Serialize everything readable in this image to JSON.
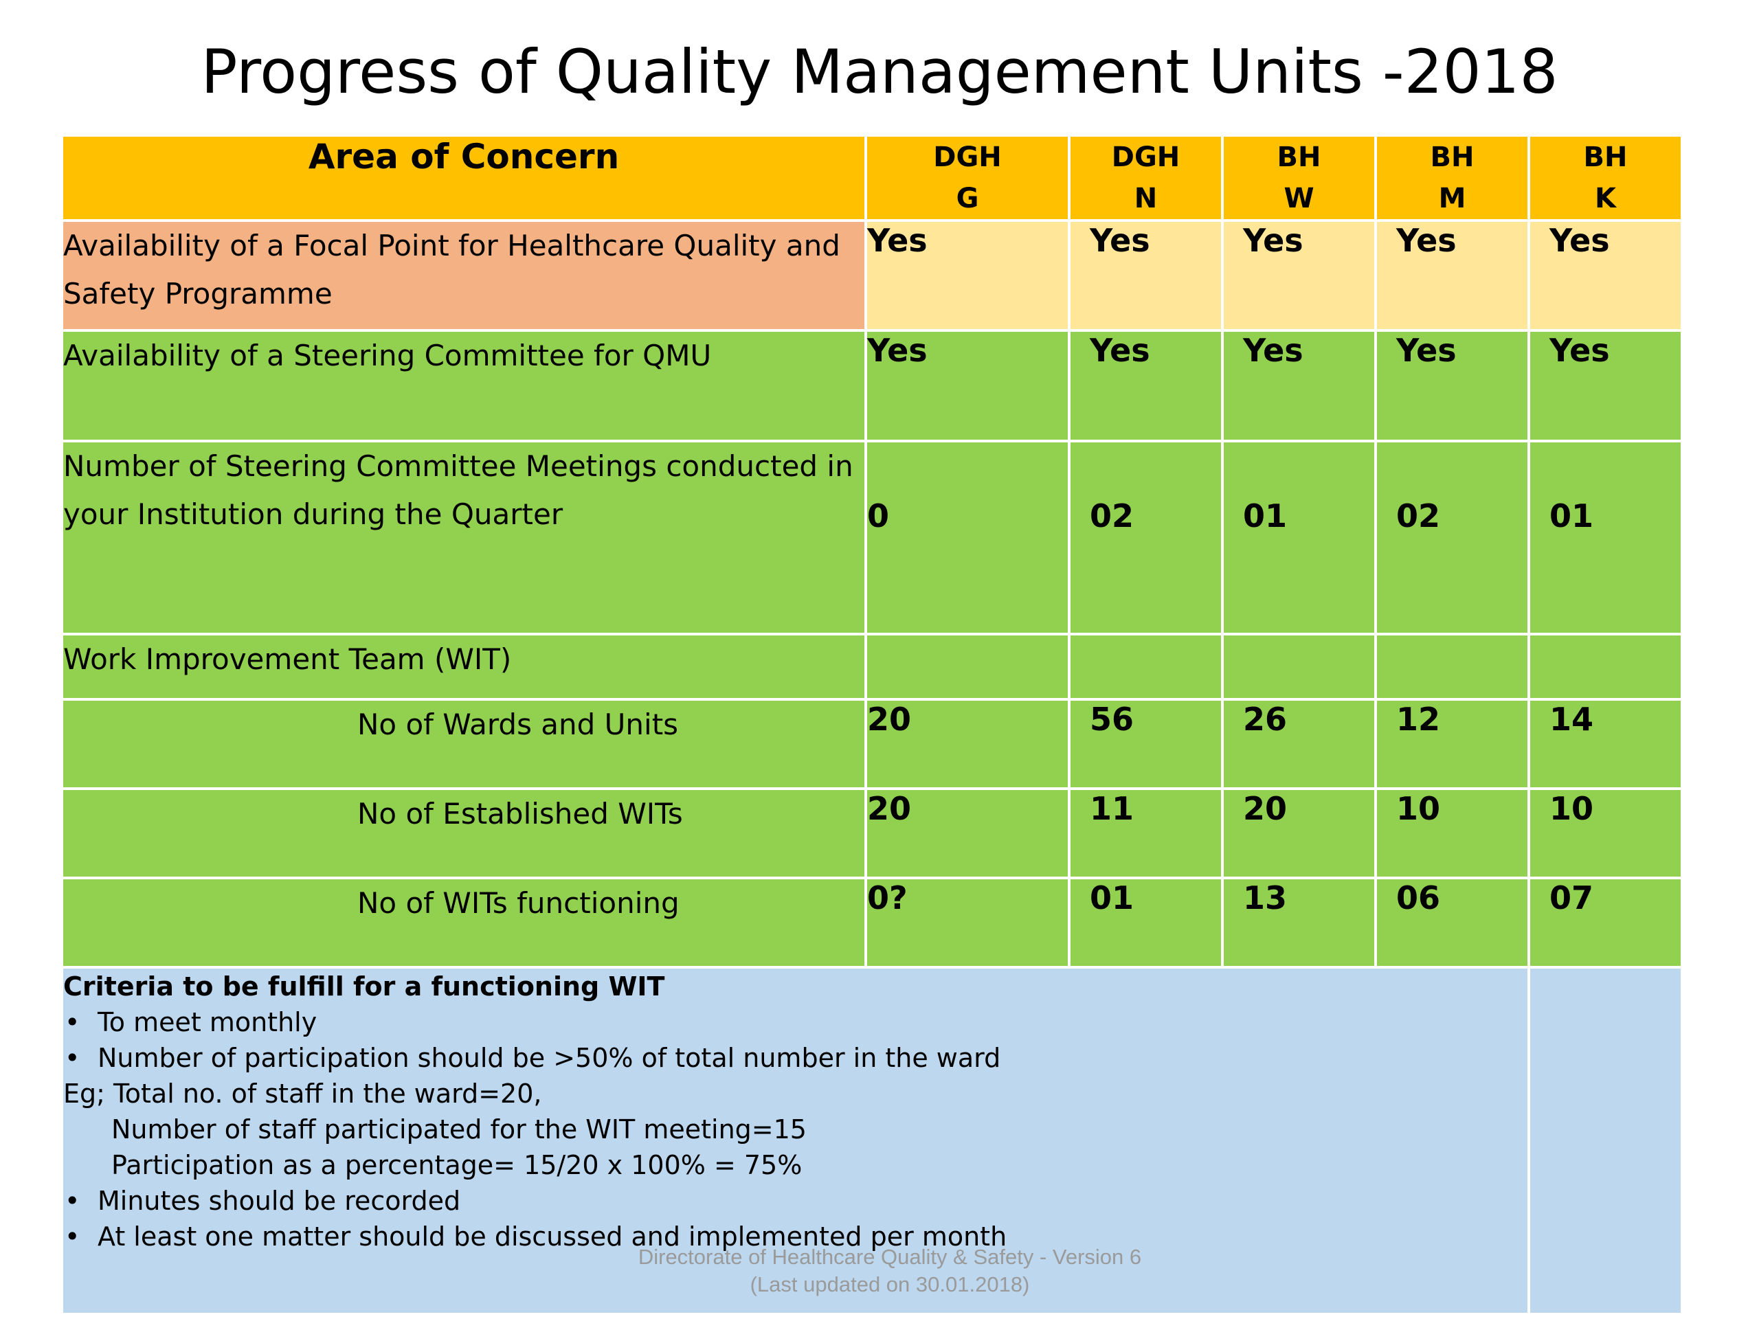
{
  "title": "Progress of Quality Management Units -2018",
  "table": {
    "header": {
      "area": "Area of Concern",
      "columns": [
        {
          "line1": "DGH",
          "line2": "G"
        },
        {
          "line1": "DGH",
          "line2": "N"
        },
        {
          "line1": "BH",
          "line2": "W"
        },
        {
          "line1": "BH",
          "line2": "M"
        },
        {
          "line1": "BH",
          "line2": "K"
        }
      ]
    },
    "rows": [
      {
        "label": "Availability of a Focal Point for Healthcare Quality and Safety Programme",
        "values": [
          "Yes",
          "Yes",
          "Yes",
          "Yes",
          "Yes"
        ]
      },
      {
        "label": "Availability of a Steering Committee for QMU",
        "values": [
          "Yes",
          "Yes",
          "Yes",
          "Yes",
          "Yes"
        ]
      },
      {
        "label": "Number of Steering Committee Meetings conducted in your Institution during the Quarter",
        "values": [
          "0",
          "02",
          "01",
          "02",
          "01"
        ]
      },
      {
        "label": "Work Improvement Team (WIT)",
        "values": [
          "",
          "",
          "",
          "",
          ""
        ]
      },
      {
        "label": "No of Wards and Units",
        "values": [
          "20",
          "56",
          "26",
          "12",
          "14"
        ]
      },
      {
        "label": "No of Established WITs",
        "values": [
          "20",
          "11",
          "20",
          "10",
          "10"
        ]
      },
      {
        "label": "No of WITs functioning",
        "values": [
          "0?",
          "01",
          "13",
          "06",
          "07"
        ]
      }
    ],
    "criteria": {
      "title": "Criteria to be fulfill for a functioning WIT",
      "bullet1": "To  meet monthly",
      "bullet2": "Number of participation should be >50% of total number in the ward",
      "example": "Eg; Total no. of staff in the ward=20,",
      "example_line1": "Number of staff participated for the WIT meeting=15",
      "example_line2": "Participation as a percentage= 15/20 x 100% = 75%",
      "bullet3": "Minutes should be recorded",
      "bullet4": "At least one matter should be discussed and implemented per month"
    }
  },
  "footer": {
    "line1": "Directorate of Healthcare Quality & Safety - Version 6",
    "line2": "(Last updated on 30.01.2018)"
  },
  "colors": {
    "header": "#FFC000",
    "focal_label": "#F4B183",
    "focal_values": "#FFE699",
    "green": "#92D050",
    "criteria": "#BDD7EE"
  }
}
